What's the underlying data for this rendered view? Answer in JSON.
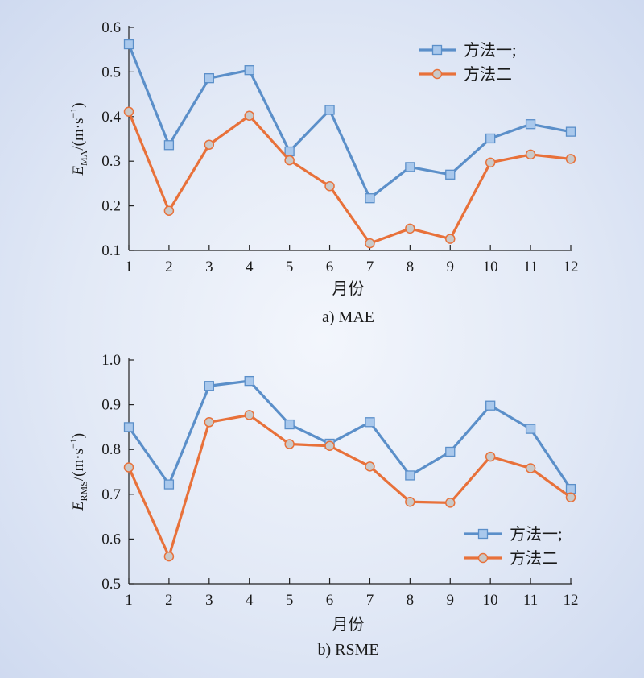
{
  "chart_data": [
    {
      "type": "line",
      "caption": "a) MAE",
      "xlabel": "月份",
      "ylabel": {
        "base": "E",
        "sub": "MA",
        "unit_prefix": "/(m·s",
        "unit_sup": "−1",
        "unit_suffix": ")"
      },
      "x": [
        1,
        2,
        3,
        4,
        5,
        6,
        7,
        8,
        9,
        10,
        11,
        12
      ],
      "xticks": [
        "1",
        "2",
        "3",
        "4",
        "5",
        "6",
        "7",
        "8",
        "9",
        "10",
        "11",
        "12"
      ],
      "ylim": [
        0.1,
        0.6
      ],
      "yticks": [
        "0.1",
        "0.2",
        "0.3",
        "0.4",
        "0.5",
        "0.6"
      ],
      "legend_position": "top-right",
      "series": [
        {
          "name": "方法一;",
          "marker": "square",
          "color": "#5b8fc9",
          "values": [
            0.562,
            0.336,
            0.486,
            0.504,
            0.322,
            0.415,
            0.217,
            0.287,
            0.27,
            0.351,
            0.383,
            0.366
          ]
        },
        {
          "name": "方法二",
          "marker": "circle",
          "color": "#e8713a",
          "values": [
            0.411,
            0.189,
            0.337,
            0.402,
            0.302,
            0.244,
            0.116,
            0.149,
            0.126,
            0.297,
            0.315,
            0.305
          ]
        }
      ]
    },
    {
      "type": "line",
      "caption": "b) RSME",
      "xlabel": "月份",
      "ylabel": {
        "base": "E",
        "sub": "RMS",
        "unit_prefix": "/(m·s",
        "unit_sup": "−1",
        "unit_suffix": ")"
      },
      "x": [
        1,
        2,
        3,
        4,
        5,
        6,
        7,
        8,
        9,
        10,
        11,
        12
      ],
      "xticks": [
        "1",
        "2",
        "3",
        "4",
        "5",
        "6",
        "7",
        "8",
        "9",
        "10",
        "11",
        "12"
      ],
      "ylim": [
        0.5,
        1.0
      ],
      "yticks": [
        "0.5",
        "0.6",
        "0.7",
        "0.8",
        "0.9",
        "1.0"
      ],
      "legend_position": "bottom-right",
      "series": [
        {
          "name": "方法一;",
          "marker": "square",
          "color": "#5b8fc9",
          "values": [
            0.85,
            0.722,
            0.942,
            0.953,
            0.856,
            0.813,
            0.861,
            0.742,
            0.795,
            0.898,
            0.846,
            0.712
          ]
        },
        {
          "name": "方法二",
          "marker": "circle",
          "color": "#e8713a",
          "values": [
            0.76,
            0.561,
            0.861,
            0.877,
            0.812,
            0.808,
            0.762,
            0.683,
            0.681,
            0.784,
            0.758,
            0.693
          ]
        }
      ]
    }
  ]
}
